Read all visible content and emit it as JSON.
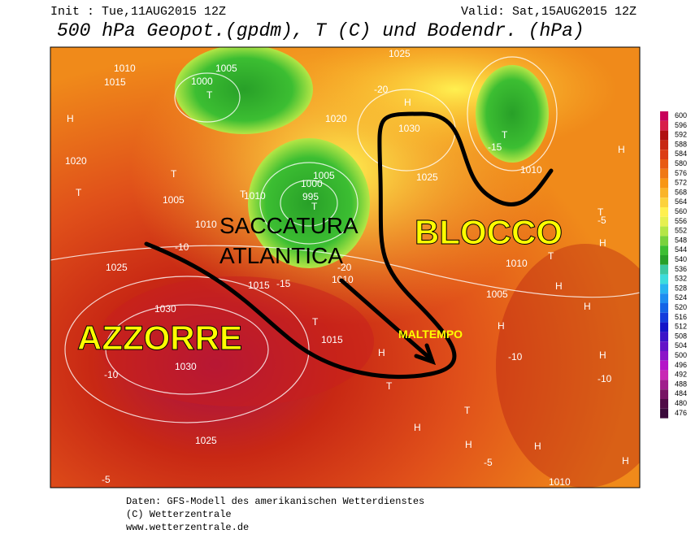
{
  "header": {
    "init": "Init : Tue,11AUG2015 12Z",
    "valid": "Valid: Sat,15AUG2015 12Z",
    "title": "500 hPa Geopot.(gpdm), T (C) und Bodendr. (hPa)"
  },
  "annotations": {
    "azzorre": "AZZORRE",
    "saccatura": "SACCATURA",
    "atlantica": "ATLANTICA",
    "blocco": "BLOCCO",
    "maltempo": "MALTEMPO"
  },
  "map": {
    "labels": [
      "H",
      "H",
      "H",
      "H",
      "H",
      "H",
      "H",
      "H",
      "H",
      "H",
      "H",
      "H",
      "H",
      "T",
      "T",
      "T",
      "T",
      "T",
      "T",
      "T",
      "T",
      "T",
      "T",
      "T",
      "1010",
      "1005",
      "1000",
      "1015",
      "1020",
      "1025",
      "1030",
      "1010",
      "1005",
      "1000",
      "995",
      "1015",
      "1020",
      "1025",
      "1030",
      "1010",
      "1005",
      "1010",
      "1015",
      "1025",
      "1010",
      "1005",
      "1010",
      "1025",
      "1030",
      "1010",
      "-20",
      "-15",
      "-10",
      "-5",
      "-10",
      "-15",
      "-20",
      "-5",
      "-10",
      "-5",
      "-10"
    ]
  },
  "colorbar": {
    "values": [
      600,
      596,
      592,
      588,
      584,
      580,
      576,
      572,
      568,
      564,
      560,
      556,
      552,
      548,
      544,
      540,
      536,
      532,
      528,
      524,
      520,
      516,
      512,
      508,
      504,
      500,
      496,
      492,
      488,
      484,
      480,
      476
    ],
    "colors": [
      "#c8005a",
      "#d81e4a",
      "#b01010",
      "#c82814",
      "#dc3c14",
      "#e85a14",
      "#f07814",
      "#f89614",
      "#fab428",
      "#fcd23c",
      "#fff050",
      "#e6f050",
      "#b4e646",
      "#78d23c",
      "#3cbe32",
      "#28a028",
      "#3cc8a0",
      "#3cdcdc",
      "#28b4f0",
      "#1e8cf0",
      "#1464e6",
      "#143cdc",
      "#1414c8",
      "#3c14c8",
      "#6414c8",
      "#8c14c8",
      "#b414c8",
      "#c828b4",
      "#a01e8c",
      "#781464",
      "#500a46",
      "#3c0a3c"
    ]
  },
  "footer": {
    "line1": "Daten: GFS-Modell des amerikanischen Wetterdienstes",
    "line2": "(C) Wetterzentrale",
    "line3": "www.wetterzentrale.de"
  }
}
